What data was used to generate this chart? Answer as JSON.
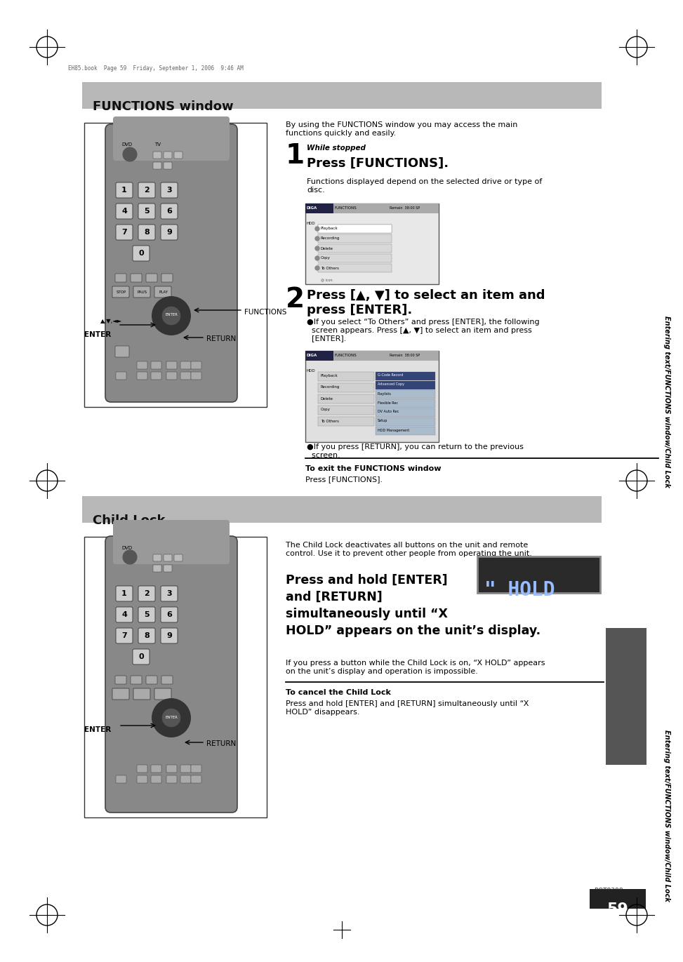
{
  "page_bg": "#ffffff",
  "header_bar_color": "#b8b8b8",
  "section1_title": "FUNCTIONS window",
  "section2_title": "Child Lock",
  "rotate_label": "Entering text/FUNCTIONS window/Child Lock",
  "page_number": "59",
  "page_ref": "RQT8398",
  "crop_text": "EH85.book  Page 59  Friday, September 1, 2006  9:46 AM",
  "intro_text1": "By using the FUNCTIONS window you may access the main\nfunctions quickly and easily.",
  "step1_header": "While stopped",
  "step1_title": "Press [FUNCTIONS].",
  "step1_body": "Functions displayed depend on the selected drive or type of\ndisc.",
  "step2_title": "Press [▲, ▼] to select an item and\npress [ENTER].",
  "step2_body1": "●If you select “To Others” and press [ENTER], the following\n  screen appears. Press [▲, ▼] to select an item and press\n  [ENTER].",
  "step2_body2": "●If you press [RETURN], you can return to the previous\n  screen.",
  "exit_label": "To exit the FUNCTIONS window",
  "exit_body": "Press [FUNCTIONS].",
  "child_intro": "The Child Lock deactivates all buttons on the unit and remote\ncontrol. Use it to prevent other people from operating the unit.",
  "child_bold_text_line1": "Press and hold [ENTER]",
  "child_bold_text_line2": "and [RETURN]",
  "child_bold_text_line3": "simultaneously until “X",
  "child_bold_text_line4": "HOLD” appears on the unit’s display.",
  "child_body1": "If you press a button while the Child Lock is on, “X HOLD” appears\non the unit’s display and operation is impossible.",
  "child_cancel_label": "To cancel the Child Lock",
  "child_cancel_body": "Press and hold [ENTER] and [RETURN] simultaneously until “X\nHOLD” disappears.",
  "hold_display_text": "\" HOLD",
  "dark_box_color": "#555555",
  "scr_bg": "#e0e0e0",
  "scr_hdr_left": "#334466",
  "scr_list_item": "#aaaaaa",
  "scr_list_selected": "#334488",
  "scr_submenu": "#446688"
}
